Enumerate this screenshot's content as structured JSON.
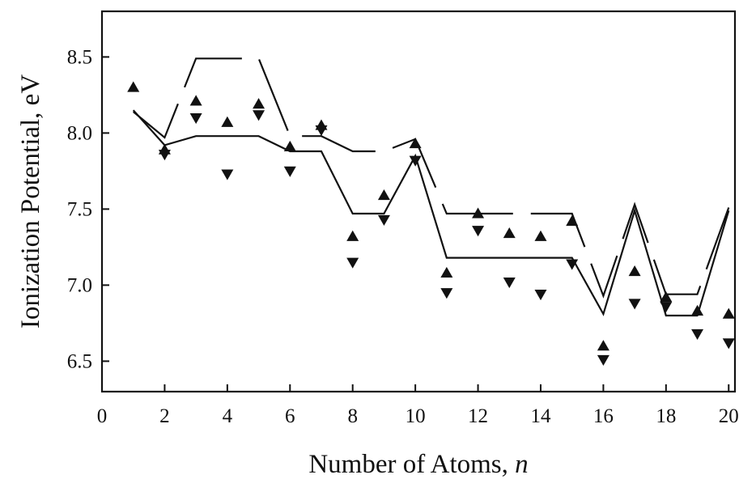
{
  "chart_data": {
    "type": "scatter",
    "xlabel": "Number of Atoms, ",
    "xlabel_var": "n",
    "ylabel": "Ionization Potential, eV",
    "xlim": [
      0,
      20.2
    ],
    "ylim": [
      6.3,
      8.8
    ],
    "x_ticks": [
      0,
      2,
      4,
      6,
      8,
      10,
      12,
      14,
      16,
      18,
      20
    ],
    "y_ticks": [
      6.5,
      7.0,
      7.5,
      8.0,
      8.5
    ],
    "y_tick_labels": [
      "6.5",
      "7.0",
      "7.5",
      "8.0",
      "8.5"
    ],
    "grid": false,
    "series": [
      {
        "marker": "triangle-up",
        "points": [
          [
            1,
            8.3
          ],
          [
            2,
            7.89
          ],
          [
            3,
            8.21
          ],
          [
            4,
            8.07
          ],
          [
            5,
            8.19
          ],
          [
            6,
            7.91
          ],
          [
            7,
            8.05
          ],
          [
            8,
            7.32
          ],
          [
            9,
            7.59
          ],
          [
            10,
            7.93
          ],
          [
            11,
            7.08
          ],
          [
            12,
            7.47
          ],
          [
            13,
            7.34
          ],
          [
            14,
            7.32
          ],
          [
            15,
            7.42
          ],
          [
            16,
            6.6
          ],
          [
            17,
            7.09
          ],
          [
            18,
            6.92
          ],
          [
            19,
            6.83
          ],
          [
            20,
            6.81
          ]
        ]
      },
      {
        "marker": "triangle-down",
        "points": [
          [
            2,
            7.86
          ],
          [
            3,
            8.1
          ],
          [
            4,
            7.73
          ],
          [
            5,
            8.12
          ],
          [
            6,
            7.75
          ],
          [
            7,
            8.02
          ],
          [
            8,
            7.15
          ],
          [
            9,
            7.43
          ],
          [
            10,
            7.82
          ],
          [
            11,
            6.95
          ],
          [
            12,
            7.36
          ],
          [
            13,
            7.02
          ],
          [
            14,
            6.94
          ],
          [
            15,
            7.14
          ],
          [
            16,
            6.51
          ],
          [
            17,
            6.88
          ],
          [
            18,
            6.86
          ],
          [
            19,
            6.68
          ],
          [
            20,
            6.62
          ]
        ]
      },
      {
        "line": "solid",
        "points": [
          [
            1,
            8.15
          ],
          [
            2,
            7.92
          ],
          [
            3,
            7.98
          ],
          [
            4,
            7.98
          ],
          [
            5,
            7.98
          ],
          [
            6,
            7.88
          ],
          [
            7,
            7.88
          ],
          [
            8,
            7.47
          ],
          [
            9,
            7.47
          ],
          [
            10,
            7.85
          ],
          [
            11,
            7.18
          ],
          [
            12,
            7.18
          ],
          [
            13,
            7.18
          ],
          [
            14,
            7.18
          ],
          [
            15,
            7.18
          ],
          [
            16,
            6.81
          ],
          [
            17,
            7.49
          ],
          [
            18,
            6.8
          ],
          [
            19,
            6.8
          ],
          [
            20,
            7.49
          ]
        ]
      },
      {
        "line": "dashed",
        "points": [
          [
            1,
            8.14
          ],
          [
            2,
            7.97
          ],
          [
            3,
            8.49
          ],
          [
            4,
            8.49
          ],
          [
            5,
            8.49
          ],
          [
            6,
            7.98
          ],
          [
            7,
            7.98
          ],
          [
            8,
            7.88
          ],
          [
            9,
            7.88
          ],
          [
            10,
            7.96
          ],
          [
            11,
            7.47
          ],
          [
            12,
            7.47
          ],
          [
            13,
            7.47
          ],
          [
            14,
            7.47
          ],
          [
            15,
            7.47
          ],
          [
            16,
            6.93
          ],
          [
            17,
            7.53
          ],
          [
            18,
            6.94
          ],
          [
            19,
            6.94
          ],
          [
            20,
            7.51
          ]
        ]
      }
    ]
  }
}
